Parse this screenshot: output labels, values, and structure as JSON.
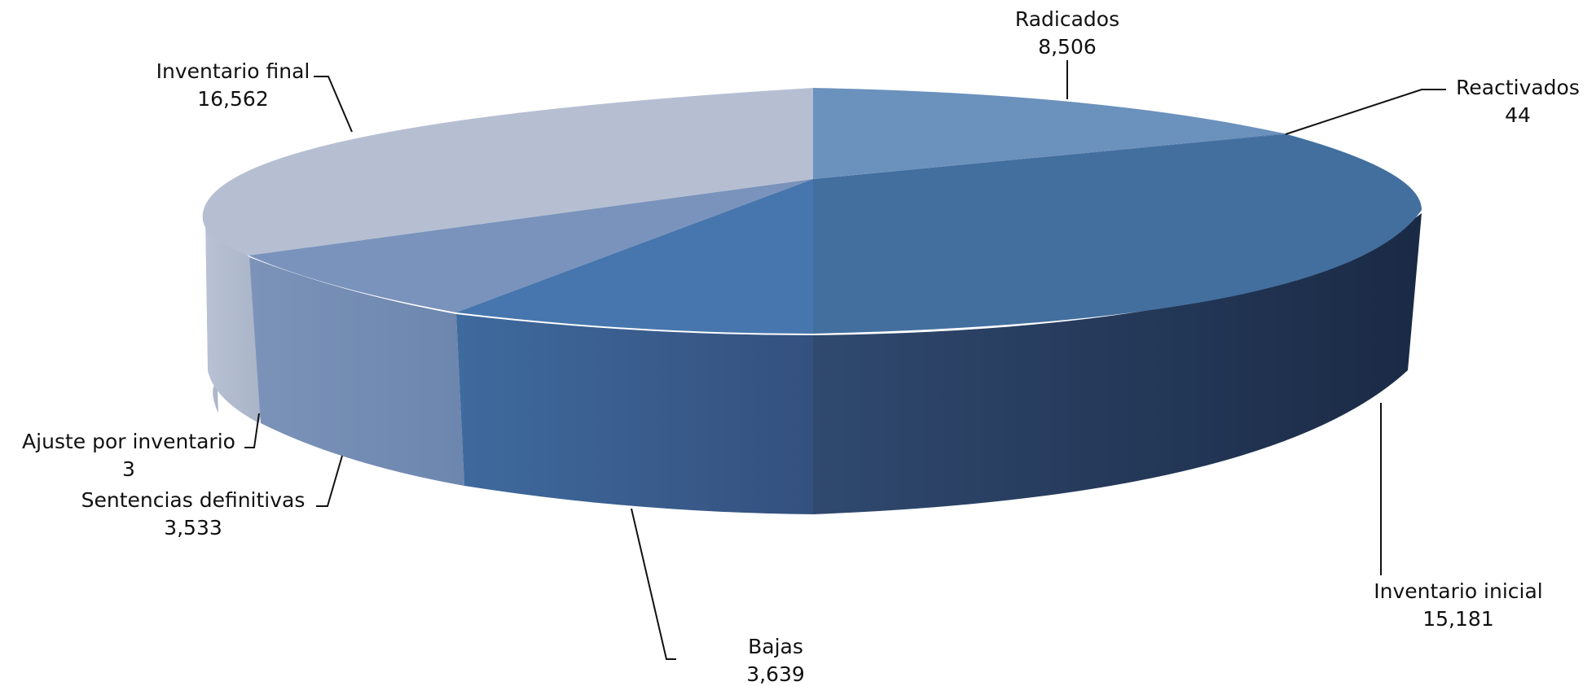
{
  "chart_data": {
    "type": "pie",
    "title": "",
    "style": "3d-exploded-disc",
    "slices": [
      {
        "label": "Radicados",
        "value": 8506,
        "value_text": "8,506",
        "color": "#6b91bd"
      },
      {
        "label": "Reactivados",
        "value": 44,
        "value_text": "44",
        "color": "#6b91bd"
      },
      {
        "label": "Inventario inicial",
        "value": 15181,
        "value_text": "15,181",
        "color": "#436f9f"
      },
      {
        "label": "Bajas",
        "value": 3639,
        "value_text": "3,639",
        "color": "#4676ad"
      },
      {
        "label": "Sentencias definitivas",
        "value": 3533,
        "value_text": "3,533",
        "color": "#7a93bc"
      },
      {
        "label": "Ajuste por inventario",
        "value": 3,
        "value_text": "3",
        "color": "#7a93bc"
      },
      {
        "label": "Inventario final",
        "value": 16562,
        "value_text": "16,562",
        "color": "#b6bfd2"
      }
    ]
  }
}
